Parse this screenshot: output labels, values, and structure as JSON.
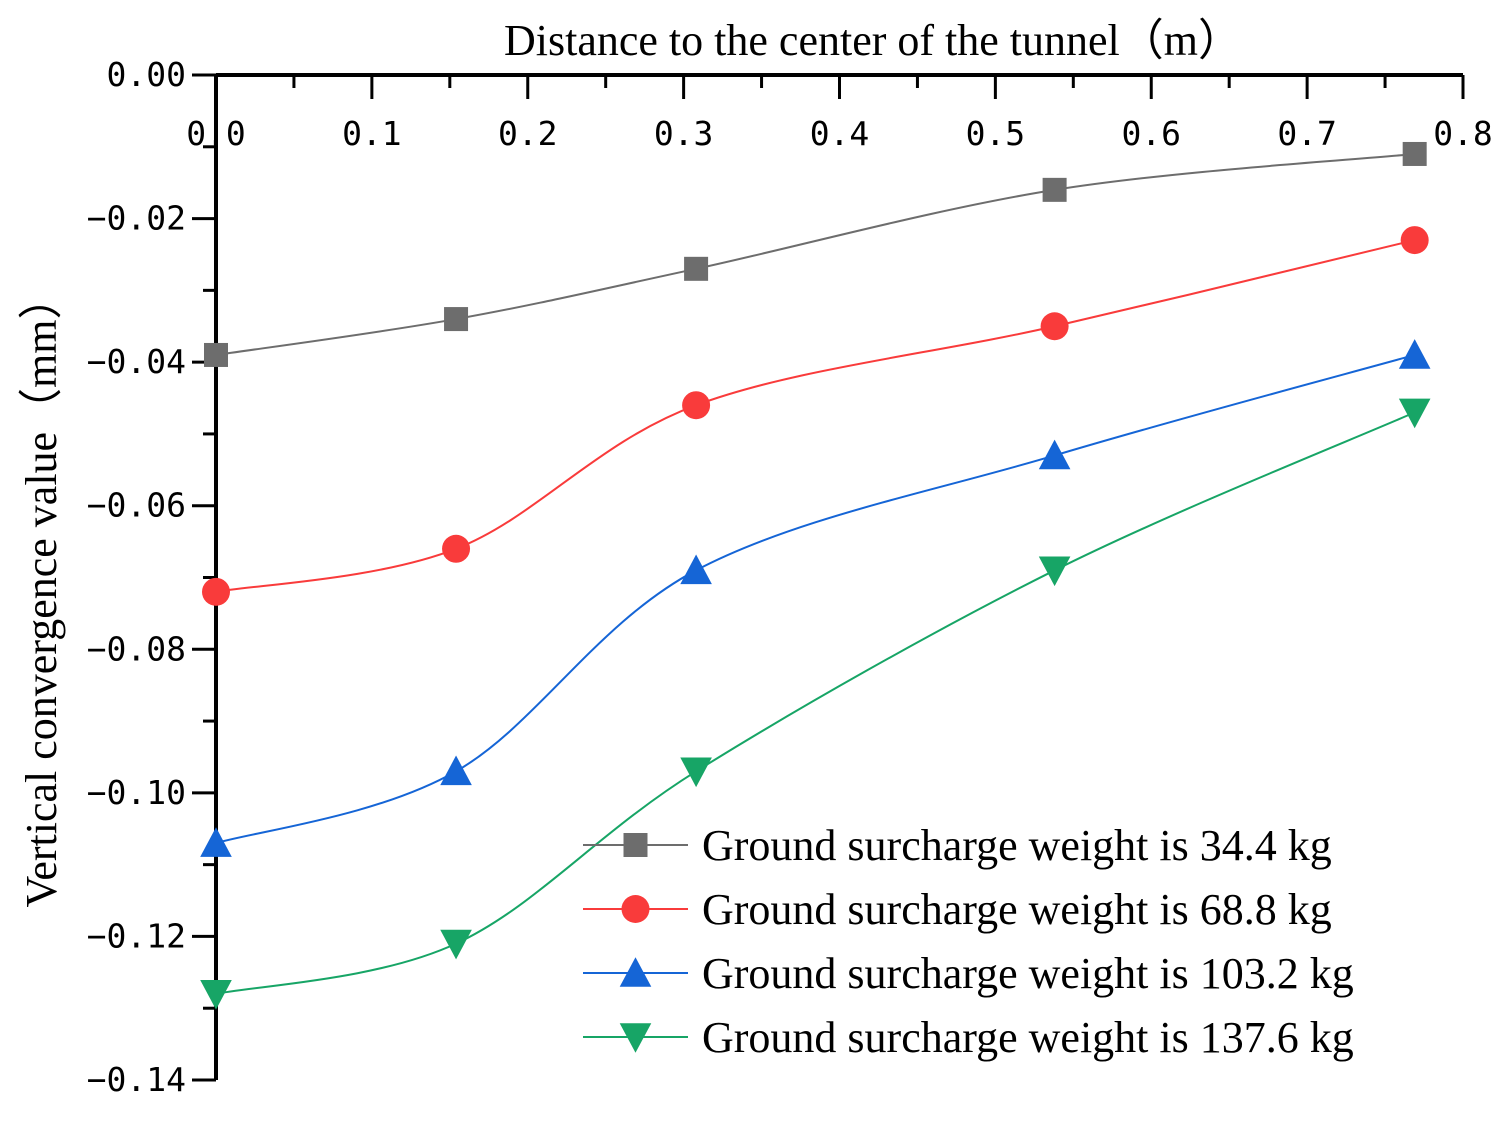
{
  "chart_data": {
    "type": "line",
    "xlabel": "Distance to the center of the tunnel（m）",
    "ylabel": "Vertical convergence value（mm）",
    "xlim": [
      0,
      0.8
    ],
    "ylim": [
      -0.14,
      0
    ],
    "x_ticks": [
      "0.0",
      "0.1",
      "0.2",
      "0.3",
      "0.4",
      "0.5",
      "0.6",
      "0.7",
      "0.8"
    ],
    "y_ticks": [
      "0.00",
      "−0.02",
      "−0.04",
      "−0.06",
      "−0.08",
      "−0.10",
      "−0.12",
      "−0.14"
    ],
    "x_axis_position": "top",
    "legend_position": "bottom-right",
    "grid": false,
    "x": [
      0,
      0.154,
      0.308,
      0.538,
      0.769
    ],
    "series": [
      {
        "name": "Ground surcharge weight is 34.4 kg",
        "marker": "square",
        "color": "#6d6d6d",
        "values": [
          -0.039,
          -0.034,
          -0.027,
          -0.016,
          -0.011
        ]
      },
      {
        "name": "Ground surcharge weight is 68.8 kg",
        "marker": "circle",
        "color": "#f93b3b",
        "values": [
          -0.072,
          -0.066,
          -0.046,
          -0.035,
          -0.023
        ]
      },
      {
        "name": "Ground surcharge weight is 103.2 kg",
        "marker": "triangle-up",
        "color": "#1565d6",
        "values": [
          -0.107,
          -0.097,
          -0.069,
          -0.053,
          -0.039
        ]
      },
      {
        "name": "Ground surcharge weight is 137.6 kg",
        "marker": "triangle-down",
        "color": "#17a566",
        "values": [
          -0.128,
          -0.121,
          -0.097,
          -0.069,
          -0.047
        ]
      }
    ]
  }
}
